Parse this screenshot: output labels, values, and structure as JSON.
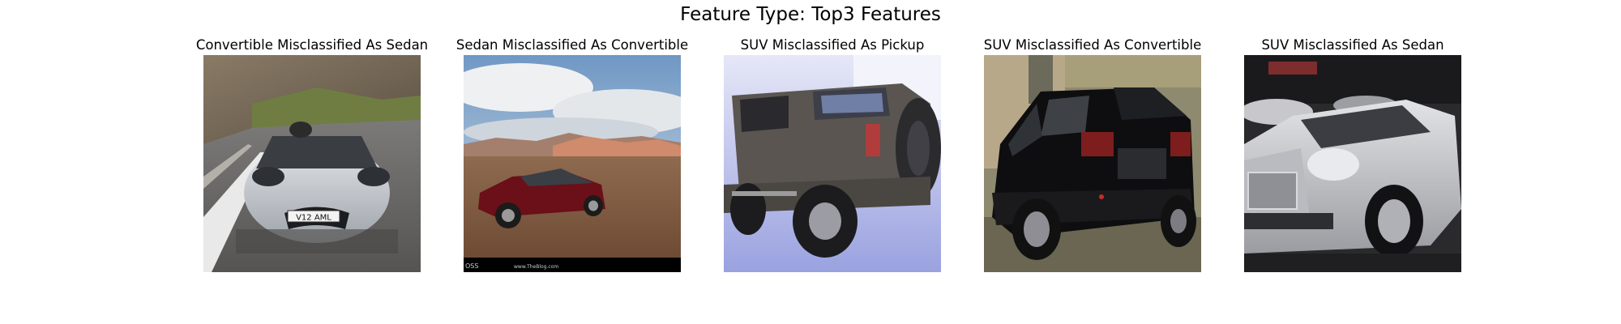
{
  "figure": {
    "title": "Feature Type: Top3 Features"
  },
  "panels": [
    {
      "title": "Convertible Misclassified As Sedan",
      "image": "silver-convertible-on-mountain-road",
      "plate_text": "V12 AML"
    },
    {
      "title": "Sedan Misclassified As Convertible",
      "image": "red-sedan-in-desert",
      "watermark_left": "OSS",
      "watermark_right": "www.TheBlog.com"
    },
    {
      "title": "SUV Misclassified As Pickup",
      "image": "grey-hummer-suv-rear-view"
    },
    {
      "title": "SUV Misclassified As Convertible",
      "image": "black-suv-rear-view"
    },
    {
      "title": "SUV Misclassified As Sedan",
      "image": "silver-crossover-suv-at-show"
    }
  ]
}
